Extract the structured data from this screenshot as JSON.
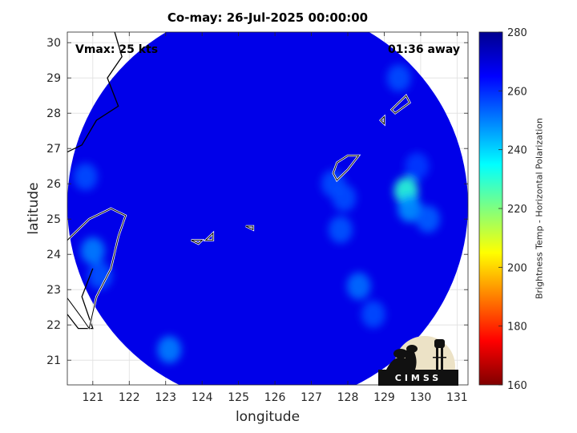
{
  "chart_data": {
    "type": "heatmap",
    "title": "Co-may: 26-Jul-2025 00:00:00",
    "xlabel": "longitude",
    "ylabel": "latitude",
    "xlim": [
      120.3,
      131.3
    ],
    "ylim": [
      20.3,
      30.3
    ],
    "x_ticks": [
      121,
      122,
      123,
      124,
      125,
      126,
      127,
      128,
      129,
      130,
      131
    ],
    "y_ticks": [
      21,
      22,
      23,
      24,
      25,
      26,
      27,
      28,
      29,
      30
    ],
    "grid": true,
    "colorbar": {
      "label": "Brightness Temp - Horizontal Polarization",
      "range": [
        160,
        280
      ],
      "ticks": [
        160,
        180,
        200,
        220,
        240,
        260,
        280
      ],
      "colormap": "jet"
    },
    "swath_center": [
      125.8,
      25.4
    ],
    "swath_radius_deg": 5.5,
    "background_value": 268,
    "features": [
      {
        "lon": 129.6,
        "lat": 25.8,
        "value": 230
      },
      {
        "lon": 129.7,
        "lat": 25.3,
        "value": 248
      },
      {
        "lon": 130.2,
        "lat": 25.0,
        "value": 254
      },
      {
        "lon": 128.3,
        "lat": 23.1,
        "value": 252
      },
      {
        "lon": 127.6,
        "lat": 26.0,
        "value": 256
      },
      {
        "lon": 127.9,
        "lat": 25.6,
        "value": 256
      },
      {
        "lon": 121.0,
        "lat": 24.1,
        "value": 250
      },
      {
        "lon": 121.2,
        "lat": 23.4,
        "value": 255
      },
      {
        "lon": 123.1,
        "lat": 21.3,
        "value": 250
      },
      {
        "lon": 120.8,
        "lat": 26.2,
        "value": 256
      },
      {
        "lon": 129.9,
        "lat": 26.5,
        "value": 258
      },
      {
        "lon": 127.8,
        "lat": 24.7,
        "value": 255
      },
      {
        "lon": 129.4,
        "lat": 29.0,
        "value": 256
      },
      {
        "lon": 128.7,
        "lat": 22.3,
        "value": 256
      }
    ],
    "annotations": {
      "vmax": "Vmax: 25 kts",
      "distance": "01:36 away"
    }
  },
  "logo": {
    "text": "CIMSS"
  }
}
